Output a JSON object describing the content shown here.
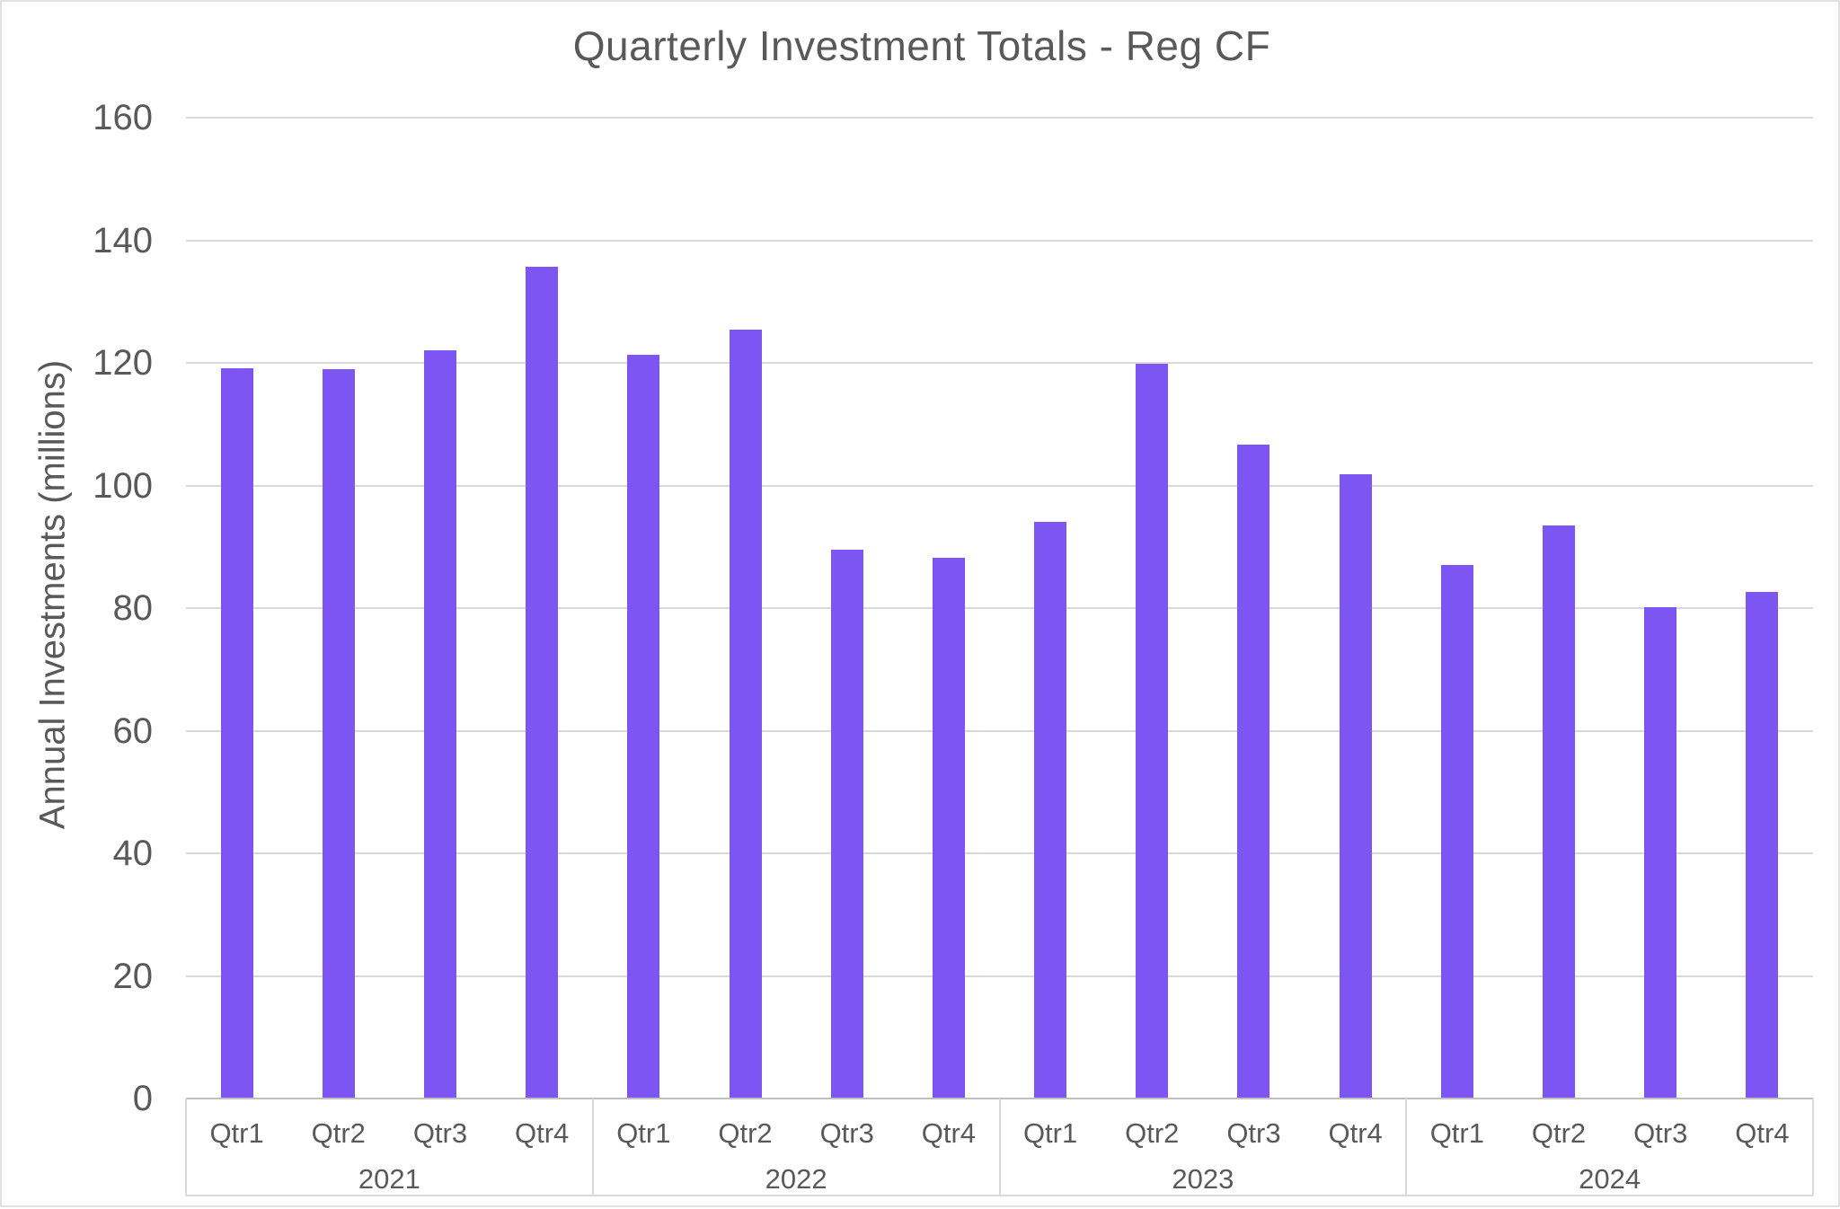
{
  "chart_data": {
    "type": "bar",
    "title": "Quarterly Investment Totals - Reg CF",
    "ylabel": "Annual Investments (millions)",
    "xlabel": "",
    "ylim": [
      0,
      160
    ],
    "yticks": [
      0,
      20,
      40,
      60,
      80,
      100,
      120,
      140,
      160
    ],
    "grid": true,
    "legend_position": "none",
    "bar_color": "#7D55F3",
    "groups": [
      {
        "year": "2021",
        "categories": [
          "Qtr1",
          "Qtr2",
          "Qtr3",
          "Qtr4"
        ],
        "values": [
          119.1,
          119.0,
          122.1,
          135.7
        ]
      },
      {
        "year": "2022",
        "categories": [
          "Qtr1",
          "Qtr2",
          "Qtr3",
          "Qtr4"
        ],
        "values": [
          121.3,
          125.4,
          89.5,
          88.2
        ]
      },
      {
        "year": "2023",
        "categories": [
          "Qtr1",
          "Qtr2",
          "Qtr3",
          "Qtr4"
        ],
        "values": [
          94.1,
          119.9,
          106.7,
          101.8
        ]
      },
      {
        "year": "2024",
        "categories": [
          "Qtr1",
          "Qtr2",
          "Qtr3",
          "Qtr4"
        ],
        "values": [
          87.0,
          93.5,
          80.1,
          82.6
        ]
      }
    ]
  },
  "colors": {
    "text": "#595959",
    "gridline": "#D9D9D9",
    "axis_line": "#BFBFBF",
    "separator": "#D9D9D9",
    "bar": "#7D55F3",
    "background": "#FFFFFF",
    "border": "#E2E2E2"
  }
}
